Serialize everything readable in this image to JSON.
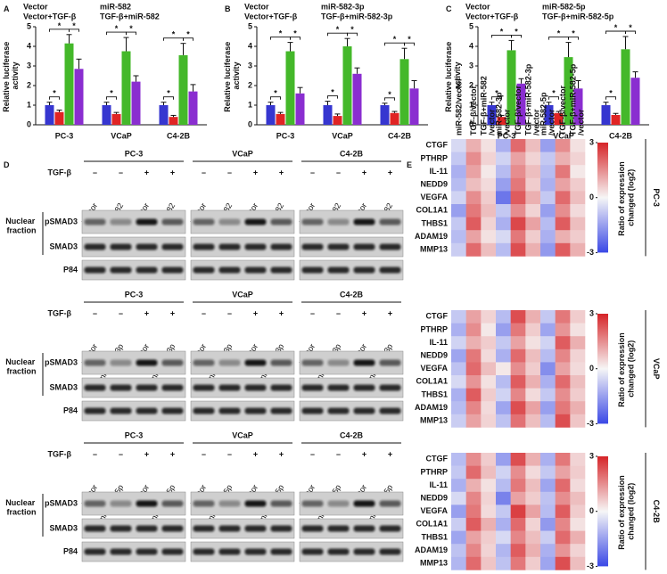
{
  "panel_labels": [
    "A",
    "B",
    "C",
    "D",
    "E"
  ],
  "chart_data": [
    {
      "type": "bar",
      "ylabel": "Relative luciferase activity",
      "categories": [
        "PC-3",
        "VCaP",
        "C4-2B"
      ],
      "series": [
        {
          "name": "Vector",
          "color": "#3636d0",
          "values": [
            1.0,
            1.0,
            1.0
          ],
          "errors": [
            0.15,
            0.15,
            0.15
          ]
        },
        {
          "name": "miR-582",
          "color": "#e02424",
          "values": [
            0.65,
            0.55,
            0.4
          ],
          "errors": [
            0.1,
            0.08,
            0.08
          ]
        },
        {
          "name": "Vector+TGF-β",
          "color": "#44b82a",
          "values": [
            4.15,
            3.75,
            3.55
          ],
          "errors": [
            0.45,
            0.7,
            0.6
          ]
        },
        {
          "name": "TGF-β+miR-582",
          "color": "#8a2ed0",
          "values": [
            2.85,
            2.2,
            1.7
          ],
          "errors": [
            0.5,
            0.3,
            0.35
          ]
        }
      ],
      "ylim": [
        0,
        5
      ],
      "yticks": [
        0,
        1,
        2,
        3,
        4,
        5
      ],
      "annotations": [
        {
          "text": "*",
          "category": 0,
          "series": [
            0,
            1
          ]
        },
        {
          "text": "*",
          "category": 0,
          "series": [
            0,
            2
          ]
        },
        {
          "text": "*",
          "category": 0,
          "series": [
            2,
            3
          ]
        },
        {
          "text": "*",
          "category": 1,
          "series": [
            0,
            1
          ]
        },
        {
          "text": "*",
          "category": 1,
          "series": [
            0,
            2
          ]
        },
        {
          "text": "*",
          "category": 1,
          "series": [
            2,
            3
          ]
        },
        {
          "text": "*",
          "category": 2,
          "series": [
            0,
            1
          ]
        },
        {
          "text": "*",
          "category": 2,
          "series": [
            0,
            2
          ]
        },
        {
          "text": "*",
          "category": 2,
          "series": [
            2,
            3
          ]
        }
      ]
    },
    {
      "type": "bar",
      "ylabel": "Relative luciferase activity",
      "categories": [
        "PC-3",
        "VCaP",
        "C4-2B"
      ],
      "series": [
        {
          "name": "Vector",
          "color": "#3636d0",
          "values": [
            1.0,
            1.0,
            1.0
          ],
          "errors": [
            0.15,
            0.2,
            0.1
          ]
        },
        {
          "name": "miR-582-3p",
          "color": "#e02424",
          "values": [
            0.55,
            0.45,
            0.6
          ],
          "errors": [
            0.08,
            0.1,
            0.08
          ]
        },
        {
          "name": "Vector+TGF-β",
          "color": "#44b82a",
          "values": [
            3.75,
            4.0,
            3.35
          ],
          "errors": [
            0.45,
            0.4,
            0.55
          ]
        },
        {
          "name": "TGF-β+miR-582-3p",
          "color": "#8a2ed0",
          "values": [
            1.6,
            2.6,
            1.85
          ],
          "errors": [
            0.3,
            0.3,
            0.4
          ]
        }
      ],
      "ylim": [
        0,
        5
      ],
      "yticks": [
        0,
        1,
        2,
        3,
        4,
        5
      ],
      "annotations": [
        {
          "text": "*",
          "category": 0,
          "series": [
            0,
            1
          ]
        },
        {
          "text": "*",
          "category": 0,
          "series": [
            0,
            2
          ]
        },
        {
          "text": "*",
          "category": 0,
          "series": [
            2,
            3
          ]
        },
        {
          "text": "*",
          "category": 1,
          "series": [
            0,
            1
          ]
        },
        {
          "text": "*",
          "category": 1,
          "series": [
            0,
            2
          ]
        },
        {
          "text": "*",
          "category": 1,
          "series": [
            2,
            3
          ]
        },
        {
          "text": "*",
          "category": 2,
          "series": [
            0,
            1
          ]
        },
        {
          "text": "*",
          "category": 2,
          "series": [
            0,
            2
          ]
        },
        {
          "text": "*",
          "category": 2,
          "series": [
            2,
            3
          ]
        }
      ]
    },
    {
      "type": "bar",
      "ylabel": "Relative luciferase activity",
      "categories": [
        "PC-3",
        "VCaP",
        "C4-2B"
      ],
      "series": [
        {
          "name": "Vector",
          "color": "#3636d0",
          "values": [
            1.0,
            1.0,
            1.0
          ],
          "errors": [
            0.15,
            0.15,
            0.15
          ]
        },
        {
          "name": "miR-582-5p",
          "color": "#e02424",
          "values": [
            0.4,
            0.6,
            0.5
          ],
          "errors": [
            0.08,
            0.08,
            0.08
          ]
        },
        {
          "name": "Vector+TGF-β",
          "color": "#44b82a",
          "values": [
            3.8,
            3.45,
            3.85
          ],
          "errors": [
            0.5,
            0.75,
            0.65
          ]
        },
        {
          "name": "TGF-β+miR-582-5p",
          "color": "#8a2ed0",
          "values": [
            2.1,
            1.85,
            2.4
          ],
          "errors": [
            0.25,
            0.4,
            0.3
          ]
        }
      ],
      "ylim": [
        0,
        5
      ],
      "yticks": [
        0,
        1,
        2,
        3,
        4,
        5
      ],
      "annotations": [
        {
          "text": "*",
          "category": 0,
          "series": [
            0,
            1
          ]
        },
        {
          "text": "*",
          "category": 0,
          "series": [
            0,
            2
          ]
        },
        {
          "text": "*",
          "category": 0,
          "series": [
            2,
            3
          ]
        },
        {
          "text": "*",
          "category": 1,
          "series": [
            0,
            1
          ]
        },
        {
          "text": "*",
          "category": 1,
          "series": [
            0,
            2
          ]
        },
        {
          "text": "*",
          "category": 1,
          "series": [
            2,
            3
          ]
        },
        {
          "text": "*",
          "category": 2,
          "series": [
            0,
            1
          ]
        },
        {
          "text": "*",
          "category": 2,
          "series": [
            0,
            2
          ]
        },
        {
          "text": "*",
          "category": 2,
          "series": [
            2,
            3
          ]
        }
      ]
    },
    {
      "type": "heatmap",
      "columns": [
        "miR-582/vector",
        "TGF-β/vector",
        "TGF-β+miR-582/vector",
        "miR-582-3p/vector",
        "TGF-β/vector",
        "TGF-β+miR-582-3p/vector",
        "miR-582-5p/vector",
        "TGF-β/vector",
        "TGF-β+miR-582-5p/vector"
      ],
      "rows": [
        "CTGF",
        "PTHRP",
        "IL-11",
        "NEDD9",
        "VEGFA",
        "COL1A1",
        "THBS1",
        "ADAM19",
        "MMP13"
      ],
      "values": [
        [
          -0.5,
          1.0,
          0.3,
          -1.2,
          2.0,
          0.8,
          -1.5,
          1.5,
          0.3
        ],
        [
          -0.8,
          1.5,
          0.5,
          -0.6,
          1.2,
          0.5,
          -0.8,
          1.0,
          0.5
        ],
        [
          -1.2,
          1.2,
          0.2,
          -1.0,
          1.5,
          0.8,
          -1.0,
          1.8,
          0.2
        ],
        [
          -1.0,
          0.8,
          0.4,
          -1.5,
          1.8,
          0.6,
          -1.2,
          1.2,
          0.6
        ],
        [
          -0.6,
          1.5,
          0.6,
          -2.2,
          2.2,
          1.0,
          -0.8,
          2.0,
          0.8
        ],
        [
          -1.5,
          1.8,
          0.8,
          -0.8,
          1.5,
          0.5,
          -1.5,
          1.5,
          0.4
        ],
        [
          -0.8,
          2.2,
          0.5,
          -1.2,
          2.5,
          1.2,
          -1.0,
          2.2,
          0.8
        ],
        [
          -1.0,
          1.2,
          0.3,
          -0.5,
          1.8,
          0.6,
          -1.2,
          1.0,
          0.6
        ],
        [
          -0.7,
          2.0,
          0.8,
          -1.0,
          2.4,
          1.0,
          -1.6,
          2.2,
          1.0
        ]
      ],
      "clim": [
        -3,
        3
      ],
      "cticks": [
        3,
        0,
        -3
      ],
      "colorbar_label": "Ratio of expression changed (log2)",
      "side_label": "PC-3"
    },
    {
      "type": "heatmap",
      "rows": [
        "CTGF",
        "PTHRP",
        "IL-11",
        "NEDD9",
        "VEGFA",
        "COL1A1",
        "THBS1",
        "ADAM19",
        "MMP13"
      ],
      "values": [
        [
          -0.8,
          1.2,
          0.5,
          -1.0,
          2.4,
          1.0,
          -0.8,
          1.8,
          0.6
        ],
        [
          -1.2,
          1.5,
          0.2,
          -1.5,
          1.8,
          0.6,
          -1.4,
          1.4,
          0.3
        ],
        [
          -0.6,
          1.0,
          0.6,
          -0.8,
          1.2,
          0.3,
          -0.6,
          2.2,
          1.0
        ],
        [
          -1.4,
          1.8,
          0.4,
          -1.2,
          2.0,
          0.8,
          -1.0,
          1.6,
          0.5
        ],
        [
          -0.9,
          2.0,
          0.8,
          0.2,
          1.5,
          0.6,
          -1.8,
          1.2,
          0.4
        ],
        [
          -0.5,
          1.4,
          0.3,
          -1.0,
          2.2,
          1.0,
          -1.2,
          2.0,
          0.8
        ],
        [
          -1.2,
          2.2,
          0.6,
          -0.6,
          1.6,
          0.4,
          -0.8,
          1.5,
          0.6
        ],
        [
          -1.0,
          1.6,
          0.4,
          -1.4,
          2.4,
          1.2,
          -1.5,
          1.8,
          1.0
        ],
        [
          -0.7,
          1.2,
          0.5,
          -0.9,
          1.9,
          0.8,
          -1.0,
          2.4,
          0.7
        ]
      ],
      "clim": [
        -3,
        3
      ],
      "cticks": [
        3,
        0,
        -3
      ],
      "colorbar_label": "Ratio of expression changed (log2)",
      "side_label": "VCaP"
    },
    {
      "type": "heatmap",
      "rows": [
        "CTGF",
        "PTHRP",
        "IL-11",
        "NEDD9",
        "VEGFA",
        "COL1A1",
        "THBS1",
        "ADAM19",
        "MMP13"
      ],
      "values": [
        [
          -1.0,
          1.5,
          0.6,
          -1.5,
          2.4,
          1.0,
          -1.2,
          1.8,
          0.5
        ],
        [
          -0.8,
          2.0,
          0.8,
          -0.6,
          1.5,
          0.4,
          -0.8,
          1.2,
          0.6
        ],
        [
          -1.2,
          1.0,
          0.3,
          -1.0,
          1.8,
          0.8,
          -1.4,
          2.0,
          0.4
        ],
        [
          -0.5,
          1.6,
          0.5,
          -2.0,
          1.2,
          0.6,
          -0.9,
          1.5,
          0.8
        ],
        [
          -1.5,
          1.8,
          0.4,
          -0.8,
          2.6,
          1.2,
          -1.0,
          2.2,
          0.6
        ],
        [
          -0.7,
          2.2,
          1.0,
          -1.2,
          2.0,
          0.5,
          -1.6,
          1.6,
          0.3
        ],
        [
          -1.4,
          1.2,
          0.6,
          -0.5,
          1.6,
          0.8,
          -0.7,
          2.0,
          1.0
        ],
        [
          -0.9,
          1.6,
          0.5,
          -1.1,
          2.2,
          1.0,
          -1.2,
          1.4,
          0.5
        ],
        [
          -1.1,
          2.0,
          0.7,
          -0.9,
          1.8,
          0.6,
          -1.4,
          2.4,
          0.8
        ]
      ],
      "clim": [
        -3,
        3
      ],
      "cticks": [
        3,
        0,
        -3
      ],
      "colorbar_label": "Ratio of expression changed (log2)",
      "side_label": "C4-2B"
    }
  ],
  "blots": [
    {
      "cell_lines": [
        "PC-3",
        "VCaP",
        "C4-2B"
      ],
      "treatment": "TGF-β",
      "signs": [
        "–",
        "–",
        "+",
        "+"
      ],
      "lanes": [
        "Vector",
        "miR-582",
        "Vector",
        "miR-582"
      ],
      "rows": [
        "pSMAD3",
        "SMAD3",
        "P84"
      ],
      "fraction": "Nuclear fraction"
    },
    {
      "cell_lines": [
        "PC-3",
        "VCaP",
        "C4-2B"
      ],
      "treatment": "TGF-β",
      "signs": [
        "–",
        "–",
        "+",
        "+"
      ],
      "lanes": [
        "Vector",
        "miR-582-3p",
        "Vector",
        "miR-582-3p"
      ],
      "rows": [
        "pSMAD3",
        "SMAD3",
        "P84"
      ],
      "fraction": "Nuclear fraction"
    },
    {
      "cell_lines": [
        "PC-3",
        "VCaP",
        "C4-2B"
      ],
      "treatment": "TGF-β",
      "signs": [
        "–",
        "–",
        "+",
        "+"
      ],
      "lanes": [
        "Vector",
        "miR-582-5p",
        "Vector",
        "miR-582-5p"
      ],
      "rows": [
        "pSMAD3",
        "SMAD3",
        "P84"
      ],
      "fraction": "Nuclear fraction"
    }
  ]
}
